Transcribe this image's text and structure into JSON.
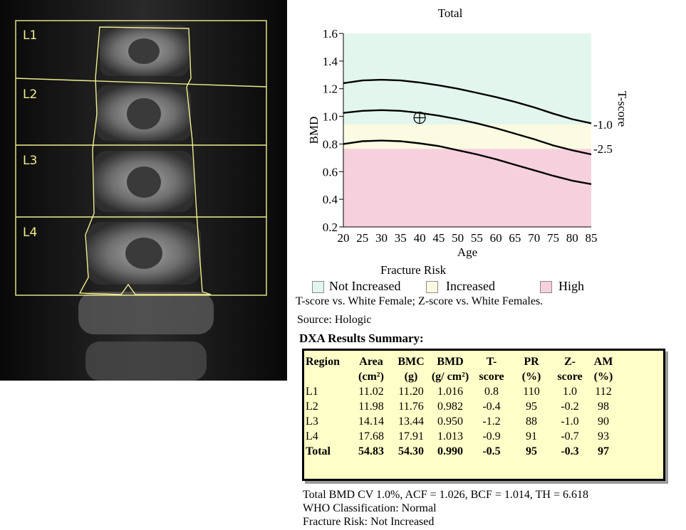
{
  "scan": {
    "labels": [
      "L1",
      "L2",
      "L3",
      "L4"
    ]
  },
  "chart_data": {
    "type": "line",
    "title": "Total",
    "xlabel": "Age",
    "ylabel": "BMD",
    "y2label": "T-score",
    "xlim": [
      20,
      85
    ],
    "ylim": [
      0.2,
      1.6
    ],
    "xticks": [
      20,
      25,
      30,
      35,
      40,
      45,
      50,
      55,
      60,
      65,
      70,
      75,
      80,
      85
    ],
    "yticks": [
      "0.2",
      "0.4",
      "0.6",
      "0.8",
      "1.0",
      "1.2",
      "1.4",
      "1.6"
    ],
    "tscore_labels": [
      {
        "label": "-1.0",
        "bmd": 0.94
      },
      {
        "label": "-2.5",
        "bmd": 0.765
      }
    ],
    "bands": [
      {
        "name": "Not Increased",
        "from": 0.94,
        "to": 1.6,
        "color": "#e3f6ed"
      },
      {
        "name": "Increased",
        "from": 0.765,
        "to": 0.94,
        "color": "#fbfbe2"
      },
      {
        "name": "High",
        "from": 0.2,
        "to": 0.765,
        "color": "#f7d0dd"
      }
    ],
    "series": [
      {
        "x": [
          20,
          25,
          30,
          35,
          40,
          45,
          50,
          55,
          60,
          65,
          70,
          75,
          80,
          85
        ],
        "values": [
          1.24,
          1.26,
          1.265,
          1.26,
          1.245,
          1.225,
          1.2,
          1.17,
          1.14,
          1.105,
          1.065,
          1.02,
          0.98,
          0.95
        ]
      },
      {
        "x": [
          20,
          25,
          30,
          35,
          40,
          45,
          50,
          55,
          60,
          65,
          70,
          75,
          80,
          85
        ],
        "values": [
          1.025,
          1.04,
          1.045,
          1.04,
          1.025,
          1.005,
          0.98,
          0.95,
          0.915,
          0.875,
          0.835,
          0.79,
          0.755,
          0.725
        ]
      },
      {
        "x": [
          20,
          25,
          30,
          35,
          40,
          45,
          50,
          55,
          60,
          65,
          70,
          75,
          80,
          85
        ],
        "values": [
          0.8,
          0.82,
          0.825,
          0.82,
          0.805,
          0.785,
          0.755,
          0.725,
          0.69,
          0.65,
          0.61,
          0.57,
          0.535,
          0.51
        ]
      }
    ],
    "patient_point": {
      "age": 40,
      "bmd": 0.99
    }
  },
  "legend": {
    "title": "Fracture Risk",
    "items": [
      {
        "label": "Not Increased",
        "color": "#e3f6ed"
      },
      {
        "label": "Increased",
        "color": "#fbfbe2"
      },
      {
        "label": "High",
        "color": "#f7d0dd"
      }
    ]
  },
  "note": "T-score vs. White Female; Z-score vs. White Females.",
  "source": "Source: Hologic",
  "summary_title": "DXA Results Summary:",
  "table": {
    "headers": [
      [
        "Region",
        "Area",
        "BMC",
        "BMD",
        "T-",
        "PR",
        "Z-",
        "AM"
      ],
      [
        "",
        "(cm²)",
        "(g)",
        "(g/ cm²)",
        "score",
        "(%)",
        "score",
        "(%)"
      ]
    ],
    "rows": [
      [
        "L1",
        "11.02",
        "11.20",
        "1.016",
        "0.8",
        "110",
        "1.0",
        "112"
      ],
      [
        "L2",
        "11.98",
        "11.76",
        "0.982",
        "-0.4",
        "95",
        "-0.2",
        "98"
      ],
      [
        "L3",
        "14.14",
        "13.44",
        "0.950",
        "-1.2",
        "88",
        "-1.0",
        "90"
      ],
      [
        "L4",
        "17.68",
        "17.91",
        "1.013",
        "-0.9",
        "91",
        "-0.7",
        "93"
      ],
      [
        "Total",
        "54.83",
        "54.30",
        "0.990",
        "-0.5",
        "95",
        "-0.3",
        "97"
      ]
    ]
  },
  "footer": {
    "line1": "Total BMD CV 1.0%, ACF = 1.026, BCF = 1.014, TH = 6.618",
    "line2": "WHO Classification: Normal",
    "line3": "Fracture Risk: Not Increased"
  }
}
